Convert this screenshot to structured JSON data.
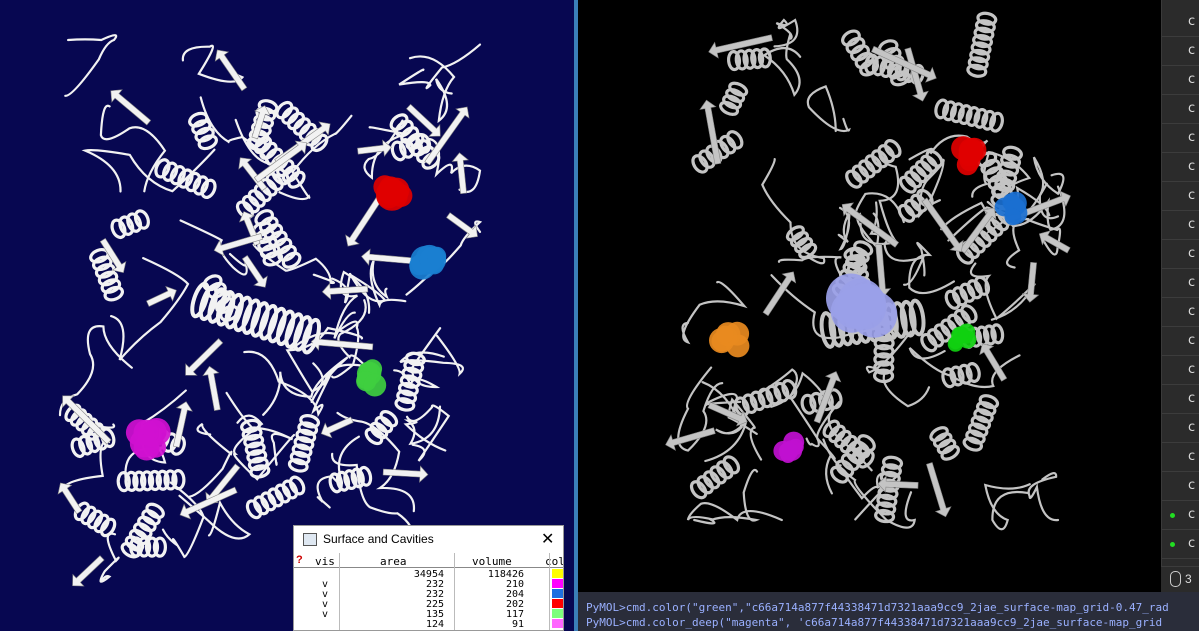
{
  "surface_window": {
    "title": "Surface and Cavities",
    "close_glyph": "✕",
    "help_glyph": "?",
    "columns": {
      "vis": "vis",
      "area": "area",
      "volume": "volume",
      "color": "col"
    },
    "rows": [
      {
        "vis": "",
        "area": "34954",
        "volume": "118426",
        "color": "#ffff00"
      },
      {
        "vis": "v",
        "area": "232",
        "volume": "210",
        "color": "#ff00ff"
      },
      {
        "vis": "v",
        "area": "232",
        "volume": "204",
        "color": "#1e6fe0"
      },
      {
        "vis": "v",
        "area": "225",
        "volume": "202",
        "color": "#ff0000"
      },
      {
        "vis": "v",
        "area": "135",
        "volume": "117",
        "color": "#7cff7c"
      },
      {
        "vis": "",
        "area": "124",
        "volume": "91",
        "color": "#ff66ff"
      }
    ]
  },
  "console": {
    "lines": [
      "PyMOL>cmd.color(\"green\",\"c66a714a877f44338471d7321aaa9cc9_2jae_surface-map_grid-0.47_rad",
      "PyMOL>cmd.color_deep(\"magenta\", 'c66a714a877f44338471d7321aaa9cc9_2jae_surface-map_grid"
    ]
  },
  "side_panel": {
    "glyph": "c",
    "rows": [
      {
        "dot": ""
      },
      {
        "dot": ""
      },
      {
        "dot": ""
      },
      {
        "dot": ""
      },
      {
        "dot": ""
      },
      {
        "dot": ""
      },
      {
        "dot": ""
      },
      {
        "dot": ""
      },
      {
        "dot": ""
      },
      {
        "dot": ""
      },
      {
        "dot": ""
      },
      {
        "dot": ""
      },
      {
        "dot": ""
      },
      {
        "dot": ""
      },
      {
        "dot": ""
      },
      {
        "dot": ""
      },
      {
        "dot": ""
      },
      {
        "dot": "#22dd22"
      },
      {
        "dot": "#22dd22"
      }
    ],
    "status_text": "3"
  },
  "colors": {
    "left_background": "#070751",
    "right_background": "#000000",
    "ribbon_left": "#f0f0f0",
    "ribbon_right": "#c9c9c9"
  }
}
